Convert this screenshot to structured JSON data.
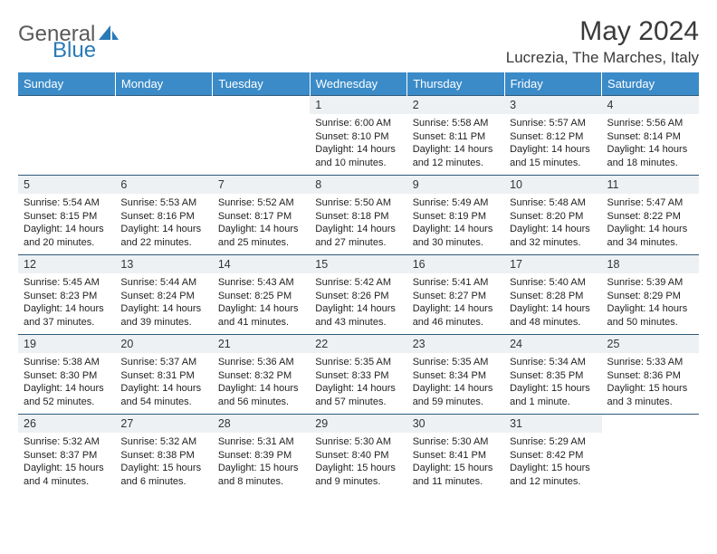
{
  "logo": {
    "general": "General",
    "blue": "Blue",
    "general_color": "#5a5a5a",
    "blue_color": "#2a7ab8",
    "shape_color": "#2a7ab8"
  },
  "title": "May 2024",
  "location": "Lucrezia, The Marches, Italy",
  "dayHeaders": [
    "Sunday",
    "Monday",
    "Tuesday",
    "Wednesday",
    "Thursday",
    "Friday",
    "Saturday"
  ],
  "header_bg": "#3b8bc8",
  "daynum_bg": "#eef1f3",
  "border_color": "#2f5a7a",
  "weeks": [
    [
      {
        "n": "",
        "lines": []
      },
      {
        "n": "",
        "lines": []
      },
      {
        "n": "",
        "lines": []
      },
      {
        "n": "1",
        "lines": [
          "Sunrise: 6:00 AM",
          "Sunset: 8:10 PM",
          "Daylight: 14 hours",
          "and 10 minutes."
        ]
      },
      {
        "n": "2",
        "lines": [
          "Sunrise: 5:58 AM",
          "Sunset: 8:11 PM",
          "Daylight: 14 hours",
          "and 12 minutes."
        ]
      },
      {
        "n": "3",
        "lines": [
          "Sunrise: 5:57 AM",
          "Sunset: 8:12 PM",
          "Daylight: 14 hours",
          "and 15 minutes."
        ]
      },
      {
        "n": "4",
        "lines": [
          "Sunrise: 5:56 AM",
          "Sunset: 8:14 PM",
          "Daylight: 14 hours",
          "and 18 minutes."
        ]
      }
    ],
    [
      {
        "n": "5",
        "lines": [
          "Sunrise: 5:54 AM",
          "Sunset: 8:15 PM",
          "Daylight: 14 hours",
          "and 20 minutes."
        ]
      },
      {
        "n": "6",
        "lines": [
          "Sunrise: 5:53 AM",
          "Sunset: 8:16 PM",
          "Daylight: 14 hours",
          "and 22 minutes."
        ]
      },
      {
        "n": "7",
        "lines": [
          "Sunrise: 5:52 AM",
          "Sunset: 8:17 PM",
          "Daylight: 14 hours",
          "and 25 minutes."
        ]
      },
      {
        "n": "8",
        "lines": [
          "Sunrise: 5:50 AM",
          "Sunset: 8:18 PM",
          "Daylight: 14 hours",
          "and 27 minutes."
        ]
      },
      {
        "n": "9",
        "lines": [
          "Sunrise: 5:49 AM",
          "Sunset: 8:19 PM",
          "Daylight: 14 hours",
          "and 30 minutes."
        ]
      },
      {
        "n": "10",
        "lines": [
          "Sunrise: 5:48 AM",
          "Sunset: 8:20 PM",
          "Daylight: 14 hours",
          "and 32 minutes."
        ]
      },
      {
        "n": "11",
        "lines": [
          "Sunrise: 5:47 AM",
          "Sunset: 8:22 PM",
          "Daylight: 14 hours",
          "and 34 minutes."
        ]
      }
    ],
    [
      {
        "n": "12",
        "lines": [
          "Sunrise: 5:45 AM",
          "Sunset: 8:23 PM",
          "Daylight: 14 hours",
          "and 37 minutes."
        ]
      },
      {
        "n": "13",
        "lines": [
          "Sunrise: 5:44 AM",
          "Sunset: 8:24 PM",
          "Daylight: 14 hours",
          "and 39 minutes."
        ]
      },
      {
        "n": "14",
        "lines": [
          "Sunrise: 5:43 AM",
          "Sunset: 8:25 PM",
          "Daylight: 14 hours",
          "and 41 minutes."
        ]
      },
      {
        "n": "15",
        "lines": [
          "Sunrise: 5:42 AM",
          "Sunset: 8:26 PM",
          "Daylight: 14 hours",
          "and 43 minutes."
        ]
      },
      {
        "n": "16",
        "lines": [
          "Sunrise: 5:41 AM",
          "Sunset: 8:27 PM",
          "Daylight: 14 hours",
          "and 46 minutes."
        ]
      },
      {
        "n": "17",
        "lines": [
          "Sunrise: 5:40 AM",
          "Sunset: 8:28 PM",
          "Daylight: 14 hours",
          "and 48 minutes."
        ]
      },
      {
        "n": "18",
        "lines": [
          "Sunrise: 5:39 AM",
          "Sunset: 8:29 PM",
          "Daylight: 14 hours",
          "and 50 minutes."
        ]
      }
    ],
    [
      {
        "n": "19",
        "lines": [
          "Sunrise: 5:38 AM",
          "Sunset: 8:30 PM",
          "Daylight: 14 hours",
          "and 52 minutes."
        ]
      },
      {
        "n": "20",
        "lines": [
          "Sunrise: 5:37 AM",
          "Sunset: 8:31 PM",
          "Daylight: 14 hours",
          "and 54 minutes."
        ]
      },
      {
        "n": "21",
        "lines": [
          "Sunrise: 5:36 AM",
          "Sunset: 8:32 PM",
          "Daylight: 14 hours",
          "and 56 minutes."
        ]
      },
      {
        "n": "22",
        "lines": [
          "Sunrise: 5:35 AM",
          "Sunset: 8:33 PM",
          "Daylight: 14 hours",
          "and 57 minutes."
        ]
      },
      {
        "n": "23",
        "lines": [
          "Sunrise: 5:35 AM",
          "Sunset: 8:34 PM",
          "Daylight: 14 hours",
          "and 59 minutes."
        ]
      },
      {
        "n": "24",
        "lines": [
          "Sunrise: 5:34 AM",
          "Sunset: 8:35 PM",
          "Daylight: 15 hours",
          "and 1 minute."
        ]
      },
      {
        "n": "25",
        "lines": [
          "Sunrise: 5:33 AM",
          "Sunset: 8:36 PM",
          "Daylight: 15 hours",
          "and 3 minutes."
        ]
      }
    ],
    [
      {
        "n": "26",
        "lines": [
          "Sunrise: 5:32 AM",
          "Sunset: 8:37 PM",
          "Daylight: 15 hours",
          "and 4 minutes."
        ]
      },
      {
        "n": "27",
        "lines": [
          "Sunrise: 5:32 AM",
          "Sunset: 8:38 PM",
          "Daylight: 15 hours",
          "and 6 minutes."
        ]
      },
      {
        "n": "28",
        "lines": [
          "Sunrise: 5:31 AM",
          "Sunset: 8:39 PM",
          "Daylight: 15 hours",
          "and 8 minutes."
        ]
      },
      {
        "n": "29",
        "lines": [
          "Sunrise: 5:30 AM",
          "Sunset: 8:40 PM",
          "Daylight: 15 hours",
          "and 9 minutes."
        ]
      },
      {
        "n": "30",
        "lines": [
          "Sunrise: 5:30 AM",
          "Sunset: 8:41 PM",
          "Daylight: 15 hours",
          "and 11 minutes."
        ]
      },
      {
        "n": "31",
        "lines": [
          "Sunrise: 5:29 AM",
          "Sunset: 8:42 PM",
          "Daylight: 15 hours",
          "and 12 minutes."
        ]
      },
      {
        "n": "",
        "lines": []
      }
    ]
  ]
}
